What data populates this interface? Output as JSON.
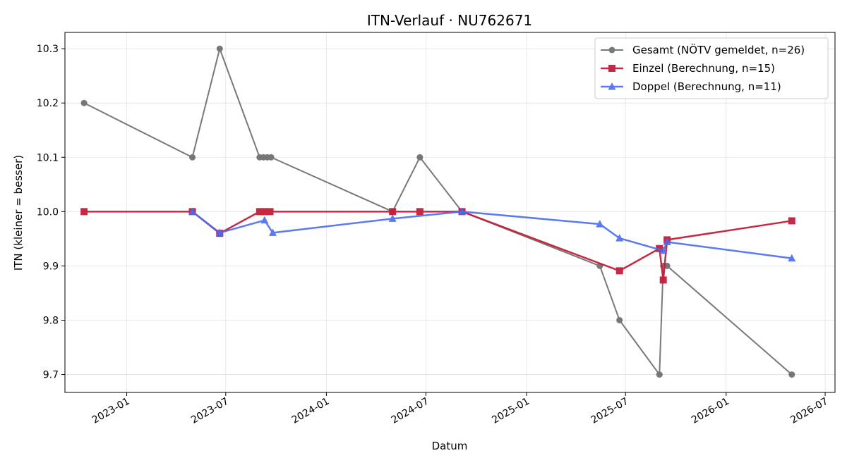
{
  "chart_data": {
    "type": "line",
    "title": "ITN-Verlauf · NU762671",
    "xlabel": "Datum",
    "ylabel": "ITN  (kleiner = besser)",
    "xlim": [
      "2022-09-10",
      "2026-07-19"
    ],
    "ylim": [
      9.667,
      10.33
    ],
    "x_ticks": [
      "2023-01",
      "2023-07",
      "2024-01",
      "2024-07",
      "2025-01",
      "2025-07",
      "2026-01",
      "2026-07"
    ],
    "y_ticks": [
      "9.7",
      "9.8",
      "9.9",
      "10.0",
      "10.1",
      "10.2",
      "10.3"
    ],
    "grid": true,
    "legend_position": "top-right",
    "series": [
      {
        "name": "Gesamt (NÖTV gemeldet, n=26)",
        "color": "#404040",
        "marker": "circle",
        "points": [
          {
            "x": "2022-10-15",
            "y": 10.2
          },
          {
            "x": "2023-05-01",
            "y": 10.1
          },
          {
            "x": "2023-06-20",
            "y": 10.3
          },
          {
            "x": "2023-09-01",
            "y": 10.1
          },
          {
            "x": "2023-09-08",
            "y": 10.1
          },
          {
            "x": "2023-09-15",
            "y": 10.1
          },
          {
            "x": "2023-09-22",
            "y": 10.1
          },
          {
            "x": "2024-05-01",
            "y": 10.0
          },
          {
            "x": "2024-06-20",
            "y": 10.1
          },
          {
            "x": "2024-09-05",
            "y": 10.0
          },
          {
            "x": "2025-05-15",
            "y": 9.9
          },
          {
            "x": "2025-06-20",
            "y": 9.8
          },
          {
            "x": "2025-09-01",
            "y": 9.7
          },
          {
            "x": "2025-09-08",
            "y": 9.9
          },
          {
            "x": "2025-09-15",
            "y": 9.9
          },
          {
            "x": "2026-05-01",
            "y": 9.7
          }
        ]
      },
      {
        "name": "Einzel (Berechnung, n=15)",
        "color": "#c41e3a",
        "marker": "square",
        "points": [
          {
            "x": "2022-10-15",
            "y": 10.0
          },
          {
            "x": "2023-05-01",
            "y": 10.0
          },
          {
            "x": "2023-06-20",
            "y": 9.96
          },
          {
            "x": "2023-09-01",
            "y": 10.0
          },
          {
            "x": "2023-09-10",
            "y": 10.0
          },
          {
            "x": "2023-09-20",
            "y": 10.0
          },
          {
            "x": "2024-05-01",
            "y": 10.0
          },
          {
            "x": "2024-06-20",
            "y": 10.0
          },
          {
            "x": "2024-09-05",
            "y": 10.0
          },
          {
            "x": "2025-06-20",
            "y": 9.891
          },
          {
            "x": "2025-09-01",
            "y": 9.932
          },
          {
            "x": "2025-09-08",
            "y": 9.874
          },
          {
            "x": "2025-09-15",
            "y": 9.948
          },
          {
            "x": "2026-05-01",
            "y": 9.983
          }
        ]
      },
      {
        "name": "Doppel (Berechnung, n=11)",
        "color": "#4a6cf0",
        "marker": "triangle",
        "points": [
          {
            "x": "2023-05-01",
            "y": 10.0
          },
          {
            "x": "2023-06-20",
            "y": 9.961
          },
          {
            "x": "2023-09-10",
            "y": 9.984
          },
          {
            "x": "2023-09-25",
            "y": 9.961
          },
          {
            "x": "2024-05-01",
            "y": 9.987
          },
          {
            "x": "2024-09-05",
            "y": 10.0
          },
          {
            "x": "2025-05-15",
            "y": 9.977
          },
          {
            "x": "2025-06-20",
            "y": 9.951
          },
          {
            "x": "2025-09-08",
            "y": 9.928
          },
          {
            "x": "2025-09-15",
            "y": 9.944
          },
          {
            "x": "2026-05-01",
            "y": 9.914
          }
        ]
      }
    ]
  }
}
